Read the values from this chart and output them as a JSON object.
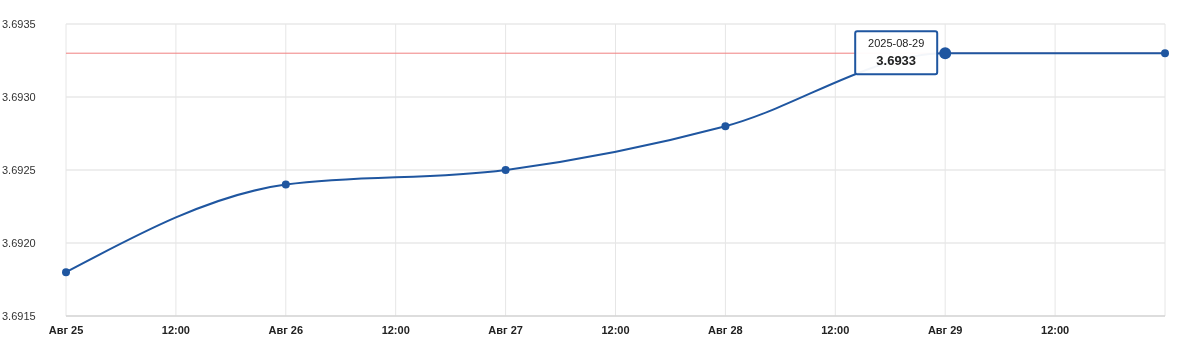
{
  "chart_data": {
    "type": "line",
    "x": [
      "2025-08-25",
      "2025-08-26",
      "2025-08-27",
      "2025-08-28",
      "2025-08-29",
      "2025-08-30"
    ],
    "series": [
      {
        "color": "#1f56a0",
        "values": [
          3.6918,
          3.6924,
          3.6925,
          3.6928,
          3.6933,
          3.6933
        ]
      }
    ],
    "xlim": [
      "2025-08-25",
      "2025-08-30"
    ],
    "xticks": [
      {
        "value": "2025-08-25",
        "label": "Авг 25"
      },
      {
        "value": "2025-08-25T12:00",
        "label": "12:00"
      },
      {
        "value": "2025-08-26",
        "label": "Авг 26"
      },
      {
        "value": "2025-08-26T12:00",
        "label": "12:00"
      },
      {
        "value": "2025-08-27",
        "label": "Авг 27"
      },
      {
        "value": "2025-08-27T12:00",
        "label": "12:00"
      },
      {
        "value": "2025-08-28",
        "label": "Авг 28"
      },
      {
        "value": "2025-08-28T12:00",
        "label": "12:00"
      },
      {
        "value": "2025-08-29",
        "label": "Авг 29"
      },
      {
        "value": "2025-08-29T12:00",
        "label": "12:00"
      },
      {
        "value": "2025-08-30",
        "label": null
      }
    ],
    "ylim": [
      3.6915,
      3.6935
    ],
    "yticks": [
      {
        "value": 3.6915,
        "label": "3.6915"
      },
      {
        "value": 3.692,
        "label": "3.6920"
      },
      {
        "value": 3.6925,
        "label": "3.6925"
      },
      {
        "value": 3.693,
        "label": "3.6930"
      },
      {
        "value": 3.6935,
        "label": "3.6935"
      }
    ],
    "ref_lines": [
      {
        "axis": "y",
        "value": 3.6933,
        "color": "#f08080"
      }
    ],
    "annotations": [
      {
        "text": "2025-08-29\n3.6933",
        "x": "2025-08-29",
        "y": 3.6933
      }
    ],
    "grid": true,
    "marker": "circle",
    "line_style": "solid"
  }
}
